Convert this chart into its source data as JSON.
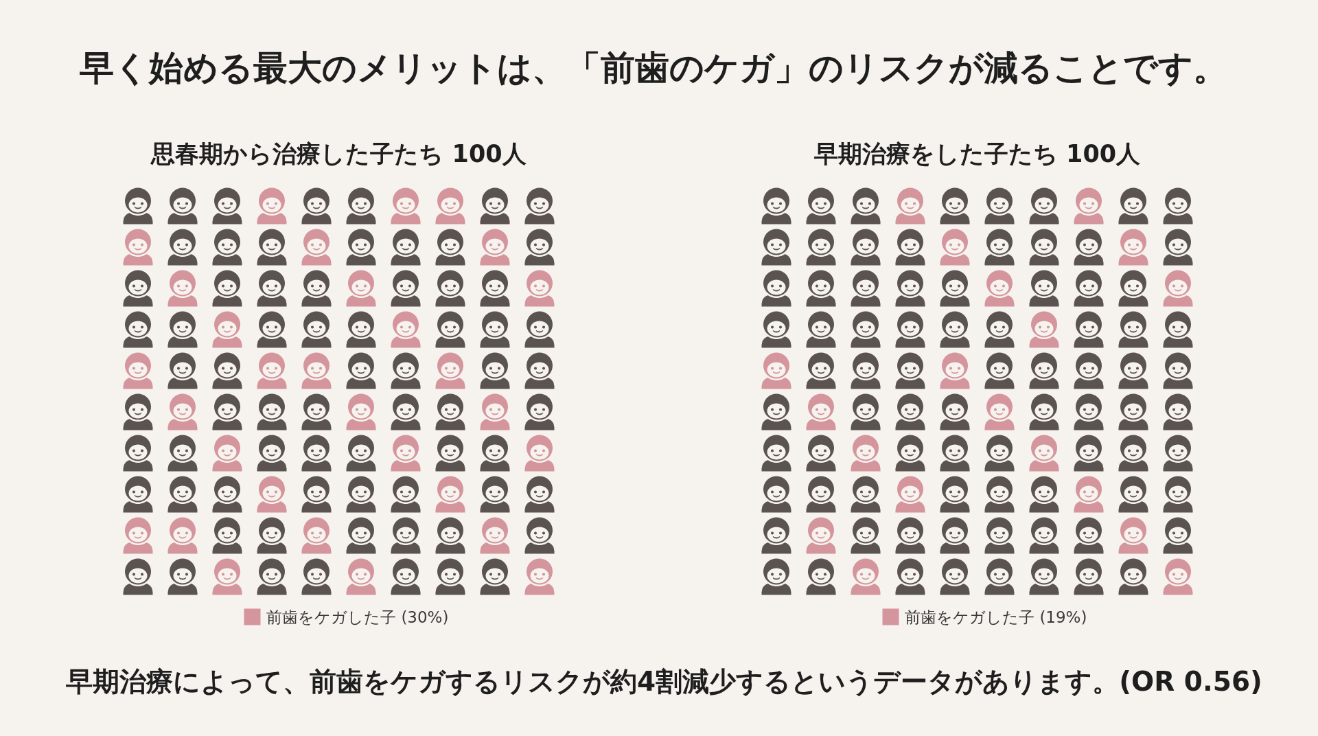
{
  "chart_data": [
    {
      "type": "other",
      "title": "早く始める最大のメリットは、「前歯のケガ」のリスクが減ることです。"
    },
    {
      "type": "other",
      "title": "思春期から治療した子たち 100人",
      "series": [
        {
          "name": "前歯をケガした子",
          "color": "#d4959d",
          "values": [
            30
          ],
          "value_labels": [
            "(30%)"
          ]
        }
      ],
      "legend": "bottom"
    },
    {
      "type": "other",
      "title": "早期治療をした子たち 100人",
      "series": [
        {
          "name": "前歯をケガした子",
          "color": "#d4959d",
          "values": [
            19
          ],
          "value_labels": [
            "(19%)"
          ]
        }
      ],
      "legend": "bottom"
    },
    {
      "type": "other",
      "annotations": [
        "早期治療によって、前歯をケガするリスクが約4割減少するというデータがあります。(OR 0.56)"
      ]
    }
  ]
}
